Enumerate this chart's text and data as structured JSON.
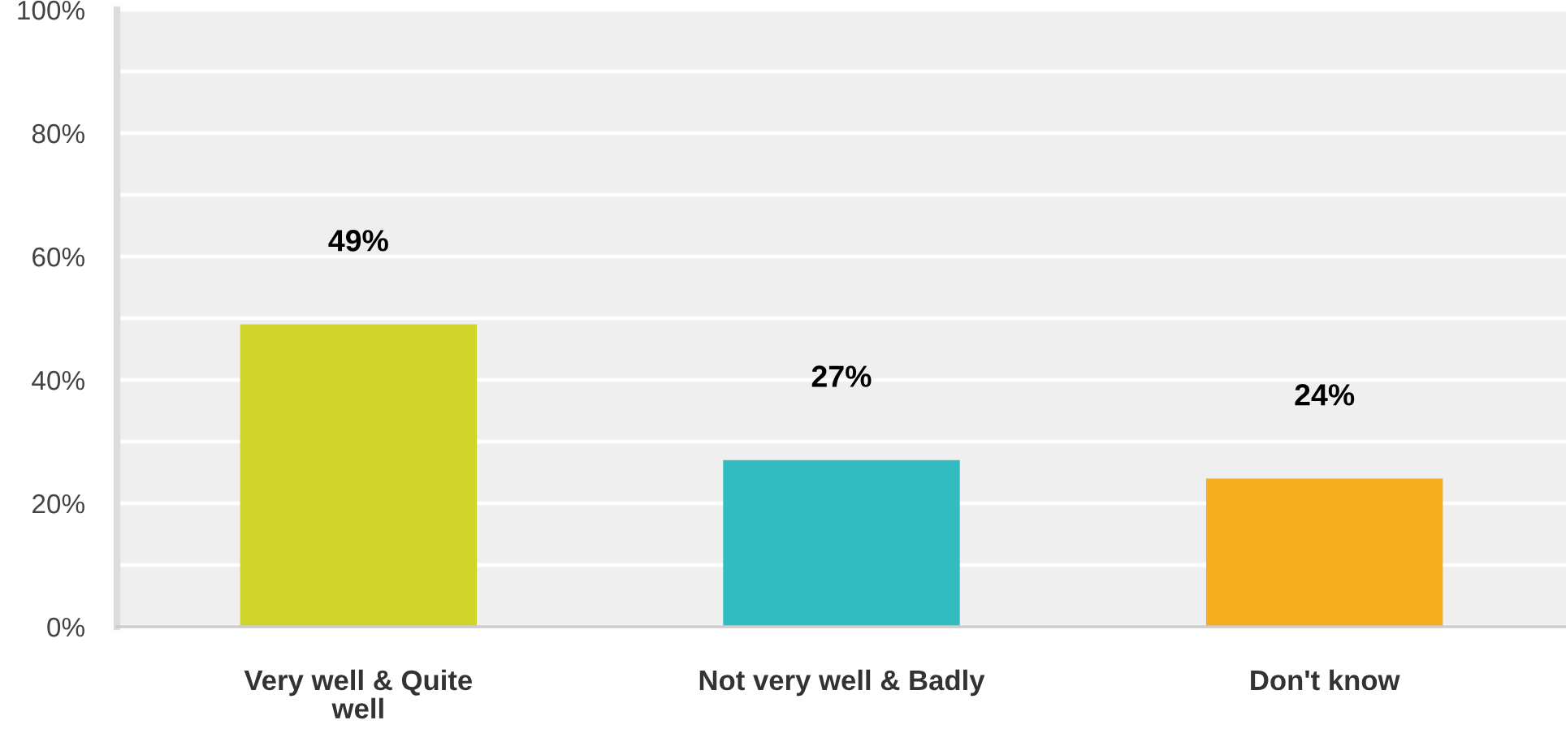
{
  "chart_data": {
    "type": "bar",
    "categories": [
      "Very well & Quite\nwell",
      "Not very well & Badly",
      "Don't know"
    ],
    "values": [
      49,
      27,
      24
    ],
    "colors": [
      "#cfd42a",
      "#33bcbf",
      "#f5ae20"
    ],
    "value_labels": [
      "49%",
      "27%",
      "24%"
    ],
    "ylim": [
      0,
      100
    ],
    "yticks": [
      {
        "value": 0,
        "label": "0%"
      },
      {
        "value": 10,
        "label": null
      },
      {
        "value": 20,
        "label": "20%"
      },
      {
        "value": 30,
        "label": null
      },
      {
        "value": 40,
        "label": "40%"
      },
      {
        "value": 50,
        "label": null
      },
      {
        "value": 60,
        "label": "60%"
      },
      {
        "value": 70,
        "label": null
      },
      {
        "value": 80,
        "label": "80%"
      },
      {
        "value": 90,
        "label": null
      },
      {
        "value": 100,
        "label": "100%"
      }
    ],
    "grid": "y"
  }
}
